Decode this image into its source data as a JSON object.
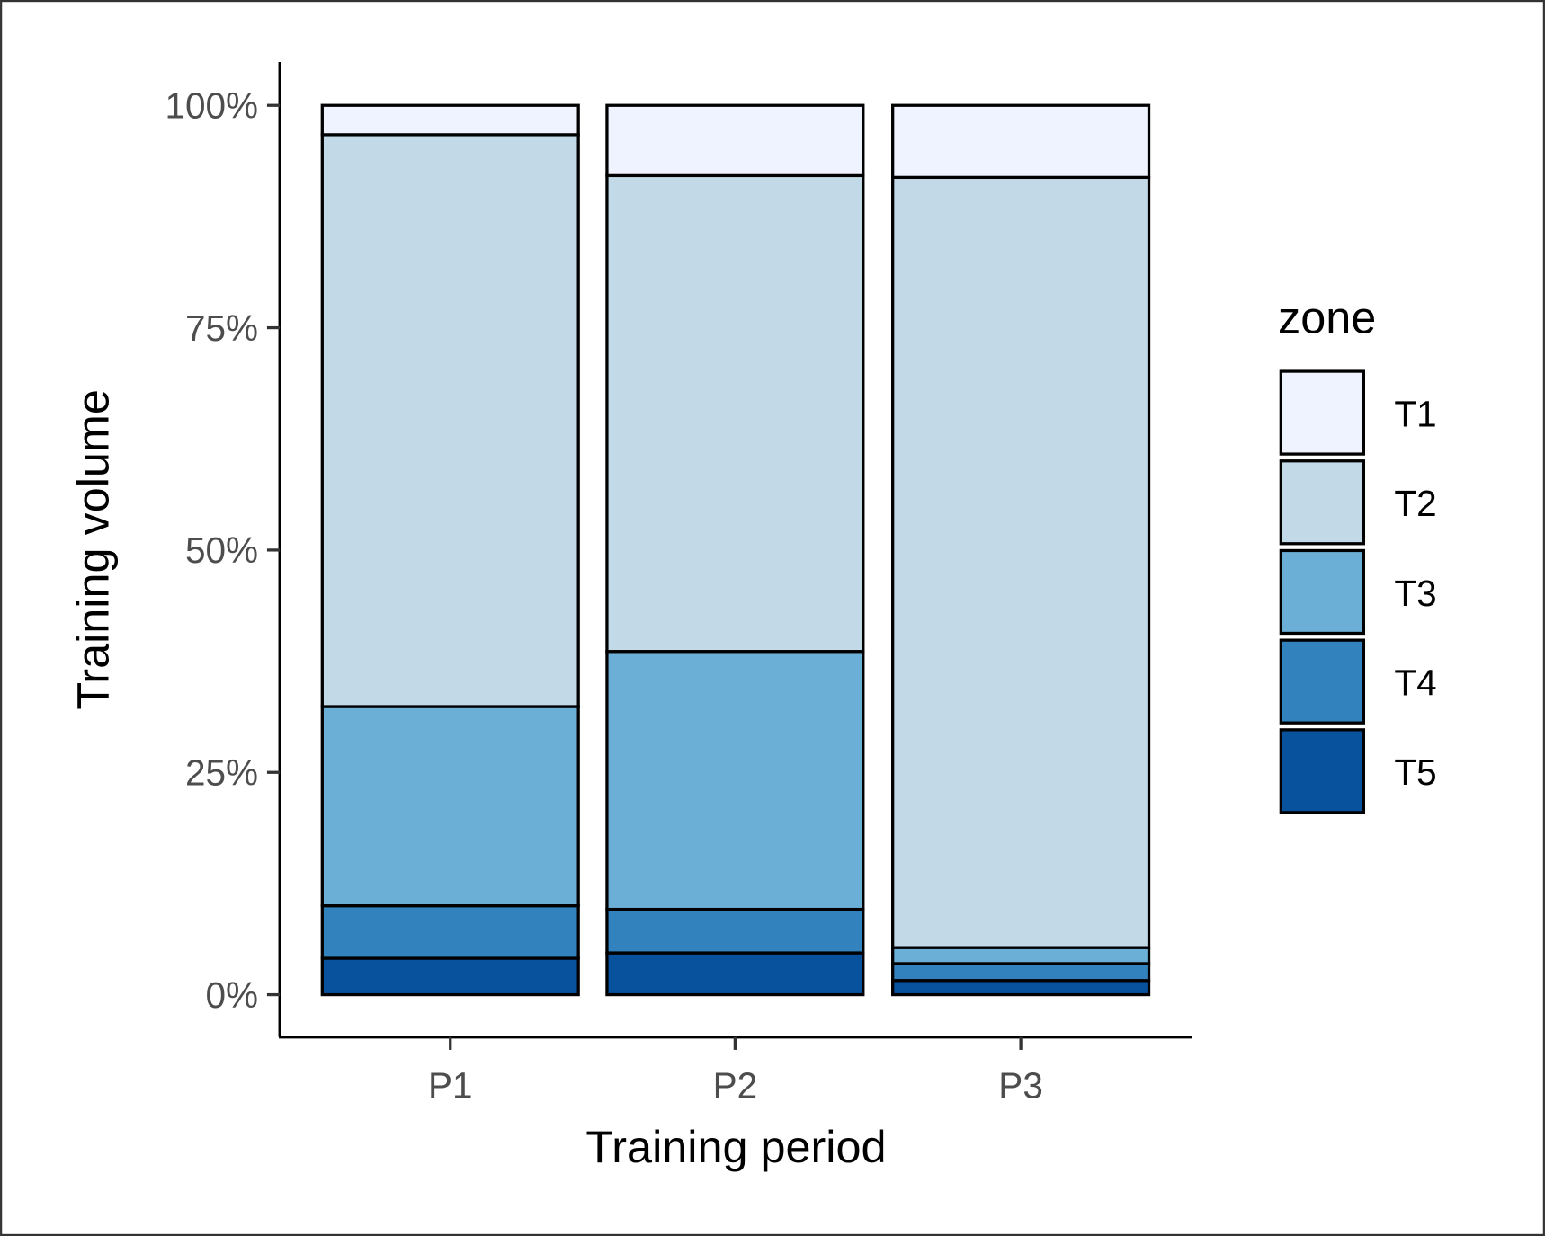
{
  "chart_data": {
    "type": "bar",
    "stacked": true,
    "percent": true,
    "categories": [
      "P1",
      "P2",
      "P3"
    ],
    "series": [
      {
        "name": "T1",
        "color": "#eff3ff",
        "values": [
          3.3,
          7.9,
          8.1
        ]
      },
      {
        "name": "T2",
        "color": "#c2d9e7",
        "values": [
          64.3,
          53.5,
          86.6
        ]
      },
      {
        "name": "T3",
        "color": "#6baed6",
        "values": [
          22.4,
          29.0,
          1.8
        ]
      },
      {
        "name": "T4",
        "color": "#3182bd",
        "values": [
          5.9,
          4.9,
          1.9
        ]
      },
      {
        "name": "T5",
        "color": "#08519c",
        "values": [
          4.1,
          4.7,
          1.6
        ]
      }
    ],
    "xlabel": "Training period",
    "ylabel": "Training volume",
    "ylim": [
      0,
      100
    ],
    "yticks": [
      "0%",
      "25%",
      "50%",
      "75%",
      "100%"
    ],
    "legend_title": "zone",
    "legend_position": "right",
    "grid": false
  }
}
